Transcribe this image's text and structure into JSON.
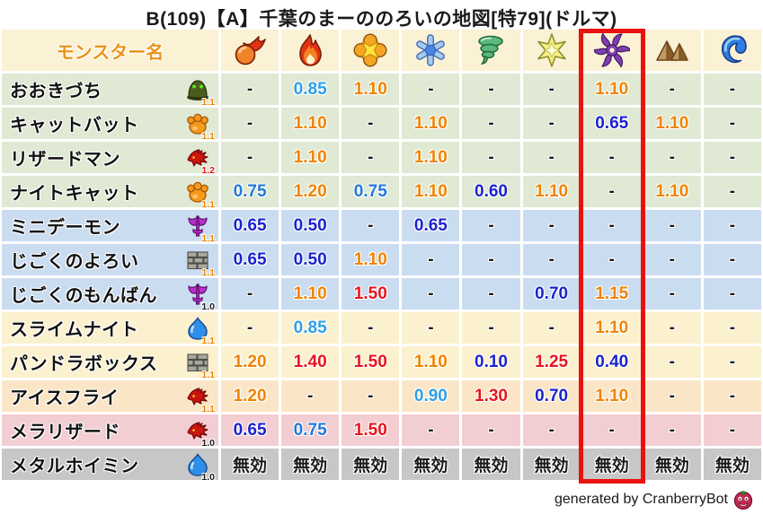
{
  "title": "B(109)【A】千葉のまーののろいの地図[特79](ドルマ)",
  "footer": {
    "credit": "generated by CranberryBot",
    "bot_icon": "cranberry-icon"
  },
  "colors": {
    "header_bg": "#fbf1d4",
    "header_label": "#e8941a",
    "highlight_box": "#e8120e",
    "value_orange": "#f08300",
    "value_red": "#e8141c",
    "value_dark_blue": "#1b23cc",
    "value_mid_blue": "#2278d8",
    "value_light_blue": "#2e9fe8",
    "value_neutral": "#1a1a1a"
  },
  "table": {
    "name_header": "モンスター名",
    "columns": [
      {
        "id": "mera",
        "icon": "fireball-icon",
        "highlighted": false
      },
      {
        "id": "gira",
        "icon": "flame-icon",
        "highlighted": false
      },
      {
        "id": "io",
        "icon": "burst-icon",
        "highlighted": false
      },
      {
        "id": "hyado",
        "icon": "snowflake-icon",
        "highlighted": false
      },
      {
        "id": "bagi",
        "icon": "tornado-icon",
        "highlighted": false
      },
      {
        "id": "dein",
        "icon": "spark-icon",
        "highlighted": false
      },
      {
        "id": "dolma",
        "icon": "pinwheel-icon",
        "highlighted": true
      },
      {
        "id": "earth",
        "icon": "mountain-icon",
        "highlighted": false
      },
      {
        "id": "water",
        "icon": "wave-icon",
        "highlighted": false
      }
    ],
    "value_colors": {
      "0.10": "#1b23cc",
      "0.40": "#1b23cc",
      "0.50": "#1b23cc",
      "0.60": "#1b23cc",
      "0.65": "#1b23cc",
      "0.70": "#1b23cc",
      "0.75": "#2278d8",
      "0.85": "#2e9fe8",
      "0.90": "#2e9fe8",
      "1.10": "#f08300",
      "1.15": "#f08300",
      "1.20": "#f08300",
      "1.25": "#e8141c",
      "1.30": "#e8141c",
      "1.40": "#e8141c",
      "1.50": "#e8141c",
      "-": "#1a1a1a",
      "無効": "#1a1a1a"
    },
    "badge_colors": {
      "1.0": "#1a1a1a",
      "1.1": "#f08300",
      "1.2": "#e8141c"
    },
    "rows": [
      {
        "name": "おおきづち",
        "icon": "green-dome-icon",
        "badge": "1.1",
        "bg": "#dfe9d3",
        "values": [
          "-",
          "0.85",
          "1.10",
          "-",
          "-",
          "-",
          "1.10",
          "-",
          "-"
        ]
      },
      {
        "name": "キャットバット",
        "icon": "paw-icon",
        "badge": "1.1",
        "bg": "#dfe9d3",
        "values": [
          "-",
          "1.10",
          "-",
          "1.10",
          "-",
          "-",
          "0.65",
          "1.10",
          "-"
        ]
      },
      {
        "name": "リザードマン",
        "icon": "dragon-icon",
        "badge": "1.2",
        "bg": "#dfe9d3",
        "values": [
          "-",
          "1.10",
          "-",
          "1.10",
          "-",
          "-",
          "-",
          "-",
          "-"
        ]
      },
      {
        "name": "ナイトキャット",
        "icon": "paw-icon",
        "badge": "1.1",
        "bg": "#dfe9d3",
        "values": [
          "0.75",
          "1.20",
          "0.75",
          "1.10",
          "0.60",
          "1.10",
          "-",
          "1.10",
          "-"
        ]
      },
      {
        "name": "ミニデーモン",
        "icon": "trident-icon",
        "badge": "1.1",
        "bg": "#cadcf0",
        "values": [
          "0.65",
          "0.50",
          "-",
          "0.65",
          "-",
          "-",
          "-",
          "-",
          "-"
        ]
      },
      {
        "name": "じごくのよろい",
        "icon": "brick-icon",
        "badge": "1.1",
        "bg": "#cadcf0",
        "values": [
          "0.65",
          "0.50",
          "1.10",
          "-",
          "-",
          "-",
          "-",
          "-",
          "-"
        ]
      },
      {
        "name": "じごくのもんばん",
        "icon": "trident-icon",
        "badge": "1.0",
        "bg": "#cadcf0",
        "values": [
          "-",
          "1.10",
          "1.50",
          "-",
          "-",
          "0.70",
          "1.15",
          "-",
          "-"
        ]
      },
      {
        "name": "スライムナイト",
        "icon": "slime-icon",
        "badge": "1.1",
        "bg": "#fbf1cf",
        "values": [
          "-",
          "0.85",
          "-",
          "-",
          "-",
          "-",
          "1.10",
          "-",
          "-"
        ]
      },
      {
        "name": "パンドラボックス",
        "icon": "brick-icon",
        "badge": "1.1",
        "bg": "#fbf1cf",
        "values": [
          "1.20",
          "1.40",
          "1.50",
          "1.10",
          "0.10",
          "1.25",
          "0.40",
          "-",
          "-"
        ]
      },
      {
        "name": "アイスフライ",
        "icon": "dragon-icon",
        "badge": "1.1",
        "bg": "#fae6c7",
        "values": [
          "1.20",
          "-",
          "-",
          "0.90",
          "1.30",
          "0.70",
          "1.10",
          "-",
          "-"
        ]
      },
      {
        "name": "メラリザード",
        "icon": "dragon-icon",
        "badge": "1.0",
        "bg": "#f2ced3",
        "values": [
          "0.65",
          "0.75",
          "1.50",
          "-",
          "-",
          "-",
          "-",
          "-",
          "-"
        ]
      },
      {
        "name": "メタルホイミン",
        "icon": "slime-icon",
        "badge": "1.0",
        "bg": "#c7c7c7",
        "values": [
          "無効",
          "無効",
          "無効",
          "無効",
          "無効",
          "無効",
          "無効",
          "無効",
          "無効"
        ]
      }
    ]
  }
}
